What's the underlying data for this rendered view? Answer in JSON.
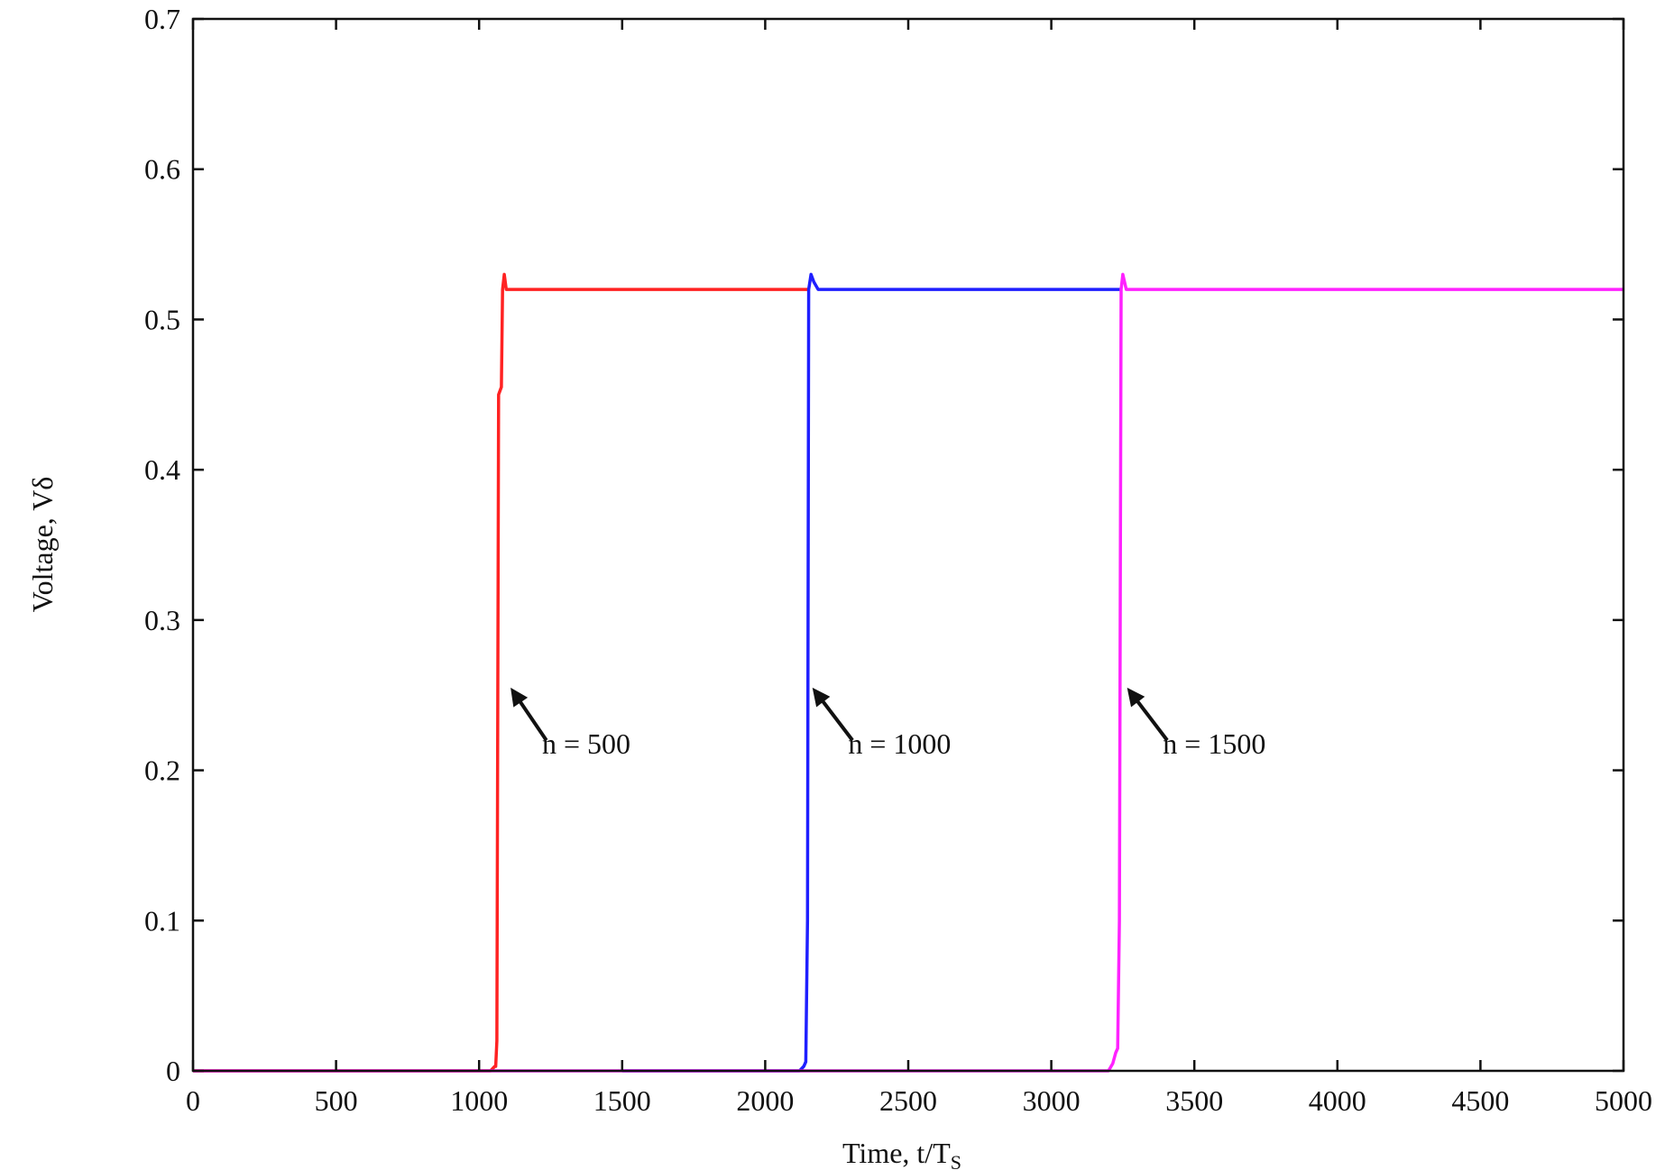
{
  "chart_data": {
    "type": "line",
    "title": "",
    "xlabel": "Time, t/T",
    "xlabel_sub": "S",
    "ylabel": "Voltage, Vδ",
    "xlim": [
      0,
      5000
    ],
    "ylim": [
      0,
      0.7
    ],
    "x_ticks": [
      "0",
      "500",
      "1000",
      "1500",
      "2000",
      "2500",
      "3000",
      "3500",
      "4000",
      "4500",
      "5000"
    ],
    "y_ticks": [
      "0",
      "0.1",
      "0.2",
      "0.3",
      "0.4",
      "0.5",
      "0.6",
      "0.7"
    ],
    "grid": false,
    "series": [
      {
        "color": "#ff2222",
        "x": [
          0,
          1040,
          1055,
          1058,
          1062,
          1068,
          1072,
          1078,
          1082,
          1088,
          1095,
          1100,
          2150
        ],
        "y": [
          0,
          0,
          0.003,
          0.003,
          0.02,
          0.45,
          0.452,
          0.455,
          0.52,
          0.53,
          0.52,
          0.52,
          0.52
        ]
      },
      {
        "color": "#1f1fff",
        "x": [
          1500,
          2120,
          2135,
          2142,
          2148,
          2152,
          2160,
          2170,
          2185,
          3240
        ],
        "y": [
          0,
          0,
          0.003,
          0.006,
          0.1,
          0.52,
          0.53,
          0.525,
          0.52,
          0.52
        ]
      },
      {
        "color": "#ff22ff",
        "x": [
          0,
          3200,
          3215,
          3225,
          3232,
          3238,
          3244,
          3250,
          3262,
          5000
        ],
        "y": [
          0,
          0,
          0.005,
          0.012,
          0.015,
          0.1,
          0.52,
          0.53,
          0.52,
          0.52
        ]
      }
    ],
    "annotations": [
      {
        "text": "n = 500",
        "x": 1220,
        "y": 0.211,
        "arrow_from": [
          1235,
          0.22
        ],
        "arrow_to": [
          1110,
          0.255
        ]
      },
      {
        "text": "n = 1000",
        "x": 2290,
        "y": 0.211,
        "arrow_from": [
          2305,
          0.22
        ],
        "arrow_to": [
          2165,
          0.255
        ]
      },
      {
        "text": "n = 1500",
        "x": 3390,
        "y": 0.211,
        "arrow_from": [
          3405,
          0.22
        ],
        "arrow_to": [
          3265,
          0.255
        ]
      }
    ]
  }
}
